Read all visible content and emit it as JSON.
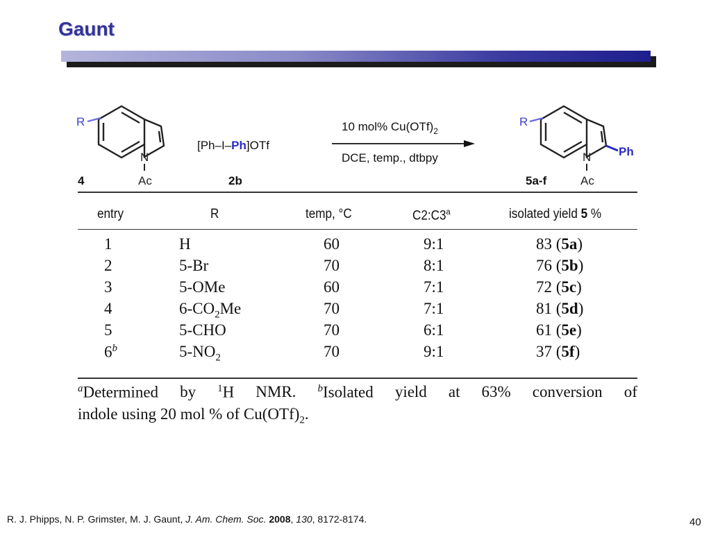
{
  "slide": {
    "title": "Gaunt",
    "page_number": "40"
  },
  "scheme": {
    "reactant_label": "4",
    "reactant_R": "R",
    "reactant_N": "N",
    "reactant_Ac": "Ac",
    "reagent_text": "[Ph–I–Ph]OTf",
    "reagent_label": "2b",
    "condition_top": "10 mol% Cu(OTf)2",
    "condition_bottom": "DCE, temp., dtbpy",
    "product_label": "5a-f",
    "product_R": "R",
    "product_N": "N",
    "product_Ac": "Ac",
    "product_Ph": "Ph"
  },
  "table": {
    "headers": [
      "entry",
      "R",
      "temp, °C",
      "C2:C3a",
      "isolated yield 5 %"
    ],
    "rows": [
      {
        "entry": "1",
        "entry_sup": "",
        "r": "H",
        "temp": "60",
        "ratio": "9:1",
        "yield": "83",
        "compound": "5a"
      },
      {
        "entry": "2",
        "entry_sup": "",
        "r": "5-Br",
        "temp": "70",
        "ratio": "8:1",
        "yield": "76",
        "compound": "5b"
      },
      {
        "entry": "3",
        "entry_sup": "",
        "r": "5-OMe",
        "temp": "60",
        "ratio": "7:1",
        "yield": "72",
        "compound": "5c"
      },
      {
        "entry": "4",
        "entry_sup": "",
        "r": "6-CO2Me",
        "temp": "70",
        "ratio": "7:1",
        "yield": "81",
        "compound": "5d"
      },
      {
        "entry": "5",
        "entry_sup": "",
        "r": "5-CHO",
        "temp": "70",
        "ratio": "6:1",
        "yield": "61",
        "compound": "5e"
      },
      {
        "entry": "6",
        "entry_sup": "b",
        "r": "5-NO2",
        "temp": "70",
        "ratio": "9:1",
        "yield": "37",
        "compound": "5f"
      }
    ],
    "footnote_line1": "a Determined by 1H NMR. b Isolated yield at 63% conversion of",
    "footnote_line2": "indole using 20 mol % of Cu(OTf)2."
  },
  "reference": {
    "authors": "R. J. Phipps, N. P. Grimster, M. J. Gaunt, ",
    "journal": "J. Am. Chem. Soc.",
    "year": "2008",
    "volume": "130",
    "pages": ", 8172-8174."
  },
  "colors": {
    "title": "#33339a",
    "accent": "#2b2bc0",
    "bar_dark": "#1e1e8e",
    "bar_light": "#b4b4dc"
  }
}
